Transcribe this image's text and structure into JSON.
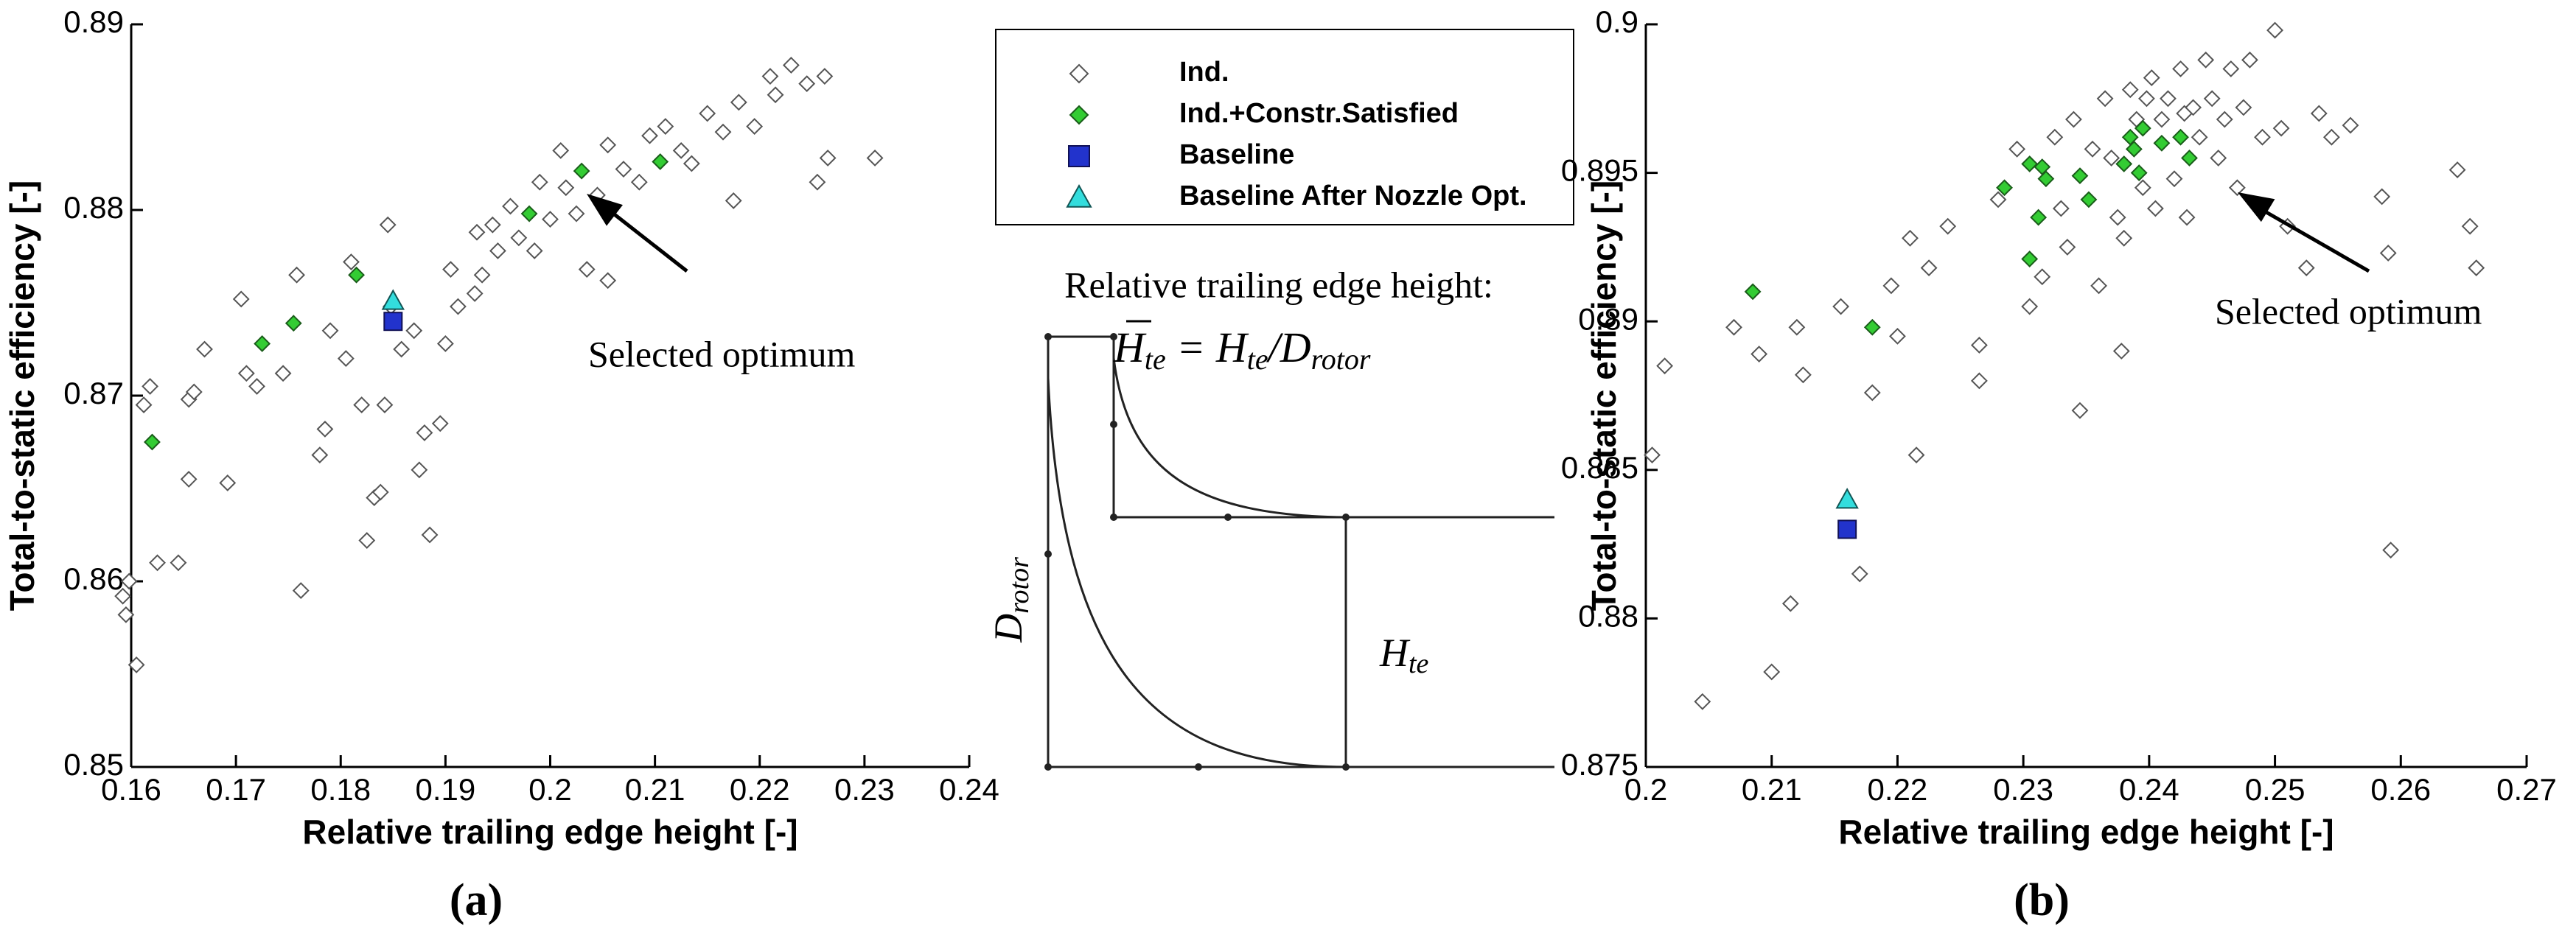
{
  "chart_data": [
    {
      "type": "scatter",
      "label": "(a)",
      "xlabel": "Relative trailing edge height [-]",
      "ylabel": "Total-to-static efficiency [-]",
      "xlim": [
        0.16,
        0.24
      ],
      "xticks": [
        0.16,
        0.17,
        0.18,
        0.19,
        0.2,
        0.21,
        0.22,
        0.23,
        0.24
      ],
      "ylim": [
        0.85,
        0.89
      ],
      "yticks": [
        0.85,
        0.86,
        0.87,
        0.88,
        0.89
      ],
      "annotation": "Selected optimum",
      "series": [
        {
          "name": "Ind.",
          "marker": "diamond",
          "color": "#555555",
          "fill": "#ffffff",
          "x": [
            0.1605,
            0.1595,
            0.1592,
            0.1598,
            0.1612,
            0.1618,
            0.1625,
            0.1645,
            0.1655,
            0.1655,
            0.166,
            0.167,
            0.1692,
            0.1705,
            0.171,
            0.172,
            0.1745,
            0.1758,
            0.1762,
            0.178,
            0.1785,
            0.179,
            0.1805,
            0.181,
            0.182,
            0.1825,
            0.1832,
            0.1838,
            0.1842,
            0.1845,
            0.1848,
            0.1858,
            0.187,
            0.1875,
            0.1885,
            0.188,
            0.1895,
            0.19,
            0.1905,
            0.1912,
            0.1928,
            0.193,
            0.1935,
            0.1945,
            0.195,
            0.1962,
            0.197,
            0.1985,
            0.199,
            0.2,
            0.201,
            0.2015,
            0.2025,
            0.2045,
            0.2055,
            0.207,
            0.2085,
            0.2095,
            0.211,
            0.2125,
            0.2135,
            0.215,
            0.2165,
            0.2175,
            0.218,
            0.2195,
            0.221,
            0.2215,
            0.223,
            0.2245,
            0.2255,
            0.2262,
            0.2265,
            0.231,
            0.2055,
            0.2035
          ],
          "values": [
            0.8555,
            0.8582,
            0.8592,
            0.86,
            0.8695,
            0.8705,
            0.861,
            0.861,
            0.8655,
            0.8698,
            0.8702,
            0.8725,
            0.8653,
            0.8752,
            0.8712,
            0.8705,
            0.8712,
            0.8765,
            0.8595,
            0.8668,
            0.8682,
            0.8735,
            0.872,
            0.8772,
            0.8695,
            0.8622,
            0.8645,
            0.8648,
            0.8695,
            0.8792,
            0.8748,
            0.8725,
            0.8735,
            0.866,
            0.8625,
            0.868,
            0.8685,
            0.8728,
            0.8768,
            0.8748,
            0.8755,
            0.8788,
            0.8765,
            0.8792,
            0.8778,
            0.8802,
            0.8785,
            0.8778,
            0.8815,
            0.8795,
            0.8832,
            0.8812,
            0.8798,
            0.8808,
            0.8835,
            0.8822,
            0.8815,
            0.884,
            0.8845,
            0.8832,
            0.8825,
            0.8852,
            0.8842,
            0.8805,
            0.8858,
            0.8845,
            0.8872,
            0.8862,
            0.8878,
            0.8868,
            0.8815,
            0.8872,
            0.8828,
            0.8828,
            0.8762,
            0.8768
          ]
        },
        {
          "name": "Ind.+Constr.Satisfied",
          "marker": "diamond",
          "color": "#1a5c1a",
          "fill": "#33cc33",
          "x": [
            0.162,
            0.1725,
            0.1755,
            0.1815,
            0.198,
            0.203,
            0.2105
          ],
          "values": [
            0.8675,
            0.8728,
            0.8739,
            0.8765,
            0.8798,
            0.8821,
            0.8826
          ]
        },
        {
          "name": "Baseline",
          "marker": "square",
          "color": "#111155",
          "fill": "#2233cc",
          "x": [
            0.185
          ],
          "values": [
            0.874
          ]
        },
        {
          "name": "Baseline After Nozzle Opt.",
          "marker": "triangle",
          "color": "#115555",
          "fill": "#33dddd",
          "x": [
            0.185
          ],
          "values": [
            0.8751
          ]
        }
      ]
    },
    {
      "type": "scatter",
      "label": "(b)",
      "xlabel": "Relative trailing edge height [-]",
      "ylabel": "Total-to-static efficiency [-]",
      "xlim": [
        0.2,
        0.27
      ],
      "xticks": [
        0.2,
        0.21,
        0.22,
        0.23,
        0.24,
        0.25,
        0.26,
        0.27
      ],
      "ylim": [
        0.875,
        0.9
      ],
      "yticks": [
        0.875,
        0.88,
        0.885,
        0.89,
        0.895,
        0.9
      ],
      "annotation": "Selected optimum",
      "series": [
        {
          "name": "Ind.",
          "marker": "diamond",
          "color": "#555555",
          "fill": "#ffffff",
          "x": [
            0.2015,
            0.2005,
            0.2045,
            0.207,
            0.209,
            0.21,
            0.2115,
            0.2125,
            0.212,
            0.2155,
            0.217,
            0.218,
            0.2195,
            0.22,
            0.221,
            0.2215,
            0.2225,
            0.224,
            0.2265,
            0.2265,
            0.228,
            0.2295,
            0.2305,
            0.2315,
            0.2325,
            0.233,
            0.2335,
            0.234,
            0.2345,
            0.2355,
            0.236,
            0.2365,
            0.237,
            0.2375,
            0.2378,
            0.238,
            0.2385,
            0.239,
            0.2395,
            0.2398,
            0.2402,
            0.2405,
            0.241,
            0.2415,
            0.242,
            0.2425,
            0.2428,
            0.243,
            0.2435,
            0.244,
            0.2445,
            0.245,
            0.2455,
            0.246,
            0.2465,
            0.247,
            0.2475,
            0.248,
            0.249,
            0.25,
            0.2505,
            0.251,
            0.2525,
            0.2535,
            0.2545,
            0.256,
            0.2585,
            0.259,
            0.2592,
            0.2645,
            0.2655,
            0.266
          ],
          "values": [
            0.8885,
            0.8855,
            0.8772,
            0.8898,
            0.8889,
            0.8782,
            0.8805,
            0.8882,
            0.8898,
            0.8905,
            0.8815,
            0.8876,
            0.8912,
            0.8895,
            0.8928,
            0.8855,
            0.8918,
            0.8932,
            0.8892,
            0.888,
            0.8941,
            0.8958,
            0.8905,
            0.8915,
            0.8962,
            0.8938,
            0.8925,
            0.8968,
            0.887,
            0.8958,
            0.8912,
            0.8975,
            0.8955,
            0.8935,
            0.889,
            0.8928,
            0.8978,
            0.8968,
            0.8945,
            0.8975,
            0.8982,
            0.8938,
            0.8968,
            0.8975,
            0.8948,
            0.8985,
            0.897,
            0.8935,
            0.8972,
            0.8962,
            0.8988,
            0.8975,
            0.8955,
            0.8968,
            0.8985,
            0.8945,
            0.8972,
            0.8988,
            0.8962,
            0.8998,
            0.8965,
            0.8932,
            0.8918,
            0.897,
            0.8962,
            0.8966,
            0.8942,
            0.8923,
            0.8823,
            0.8951,
            0.8932,
            0.8918
          ]
        },
        {
          "name": "Ind.+Constr.Satisfied",
          "marker": "diamond",
          "color": "#1a5c1a",
          "fill": "#33cc33",
          "x": [
            0.2085,
            0.218,
            0.2285,
            0.2305,
            0.2315,
            0.2318,
            0.2312,
            0.2305,
            0.2345,
            0.2352,
            0.238,
            0.2385,
            0.2388,
            0.2395,
            0.2392,
            0.241,
            0.2425,
            0.2432
          ],
          "values": [
            0.891,
            0.8898,
            0.8945,
            0.8953,
            0.8952,
            0.8948,
            0.8935,
            0.8921,
            0.8949,
            0.8941,
            0.8953,
            0.8962,
            0.8958,
            0.8965,
            0.895,
            0.896,
            0.8962,
            0.8955
          ]
        },
        {
          "name": "Baseline",
          "marker": "square",
          "color": "#111155",
          "fill": "#2233cc",
          "x": [
            0.216
          ],
          "values": [
            0.883
          ]
        },
        {
          "name": "Baseline After Nozzle Opt.",
          "marker": "triangle",
          "color": "#115555",
          "fill": "#33dddd",
          "x": [
            0.216
          ],
          "values": [
            0.884
          ]
        }
      ]
    }
  ],
  "diagram": {
    "title": "Relative trailing edge height:",
    "formula": [
      "H",
      "te",
      " = H",
      "te",
      "/D",
      "rotor"
    ],
    "diameter": [
      "D",
      "rotor"
    ],
    "height": [
      "H",
      "te"
    ]
  }
}
